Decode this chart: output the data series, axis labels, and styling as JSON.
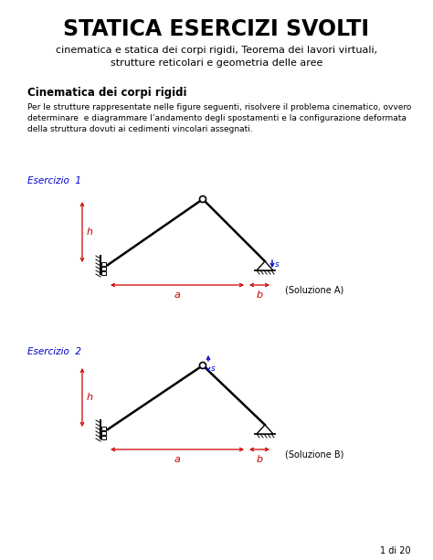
{
  "title": "STATICA ESERCIZI SVOLTI",
  "subtitle1": "cinematica e statica dei corpi rigidi, Teorema dei lavori virtuali,",
  "subtitle2": "strutture reticolari e geometria delle aree",
  "section_title": "Cinematica dei corpi rigidi",
  "body_line1": "Per le strutture rappresentate nelle figure seguenti, risolvere il problema cinematico, ovvero",
  "body_line2": "determinare  e diagrammare l’andamento degli spostamenti e la configurazione deformata",
  "body_line3": "della struttura dovuti ai cedimenti vincolari assegnati.",
  "ex1_label": "Esercizio  1",
  "ex2_label": "Esercizio  2",
  "sol_a": "(Soluzione A)",
  "sol_b": "(Soluzione B)",
  "page_label": "1 di 20",
  "bg_color": "#ffffff",
  "text_color": "#000000",
  "red_color": "#cc0000",
  "blue_color": "#0000cc"
}
